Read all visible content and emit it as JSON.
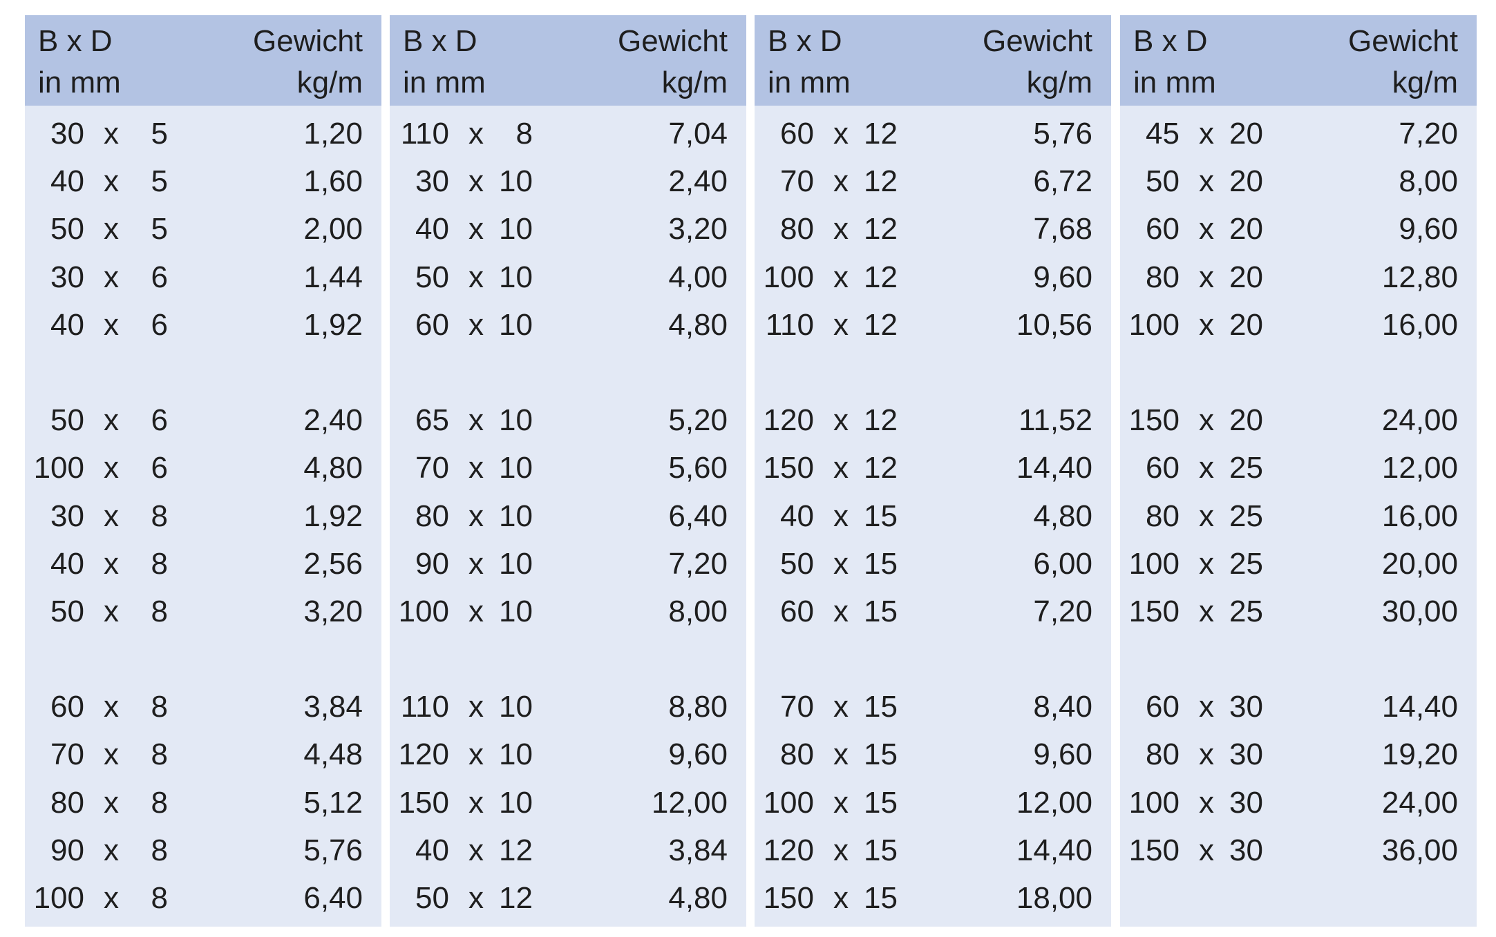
{
  "header": {
    "dim_line1": "B x D",
    "dim_line2": "in mm",
    "weight_line1": "Gewicht",
    "weight_line2": "kg/m"
  },
  "columns": [
    {
      "rows": [
        {
          "w": "30",
          "x": "x",
          "d": "5",
          "g": "1,20"
        },
        {
          "w": "40",
          "x": "x",
          "d": "5",
          "g": "1,60"
        },
        {
          "w": "50",
          "x": "x",
          "d": "5",
          "g": "2,00"
        },
        {
          "w": "30",
          "x": "x",
          "d": "6",
          "g": "1,44"
        },
        {
          "w": "40",
          "x": "x",
          "d": "6",
          "g": "1,92"
        },
        null,
        {
          "w": "50",
          "x": "x",
          "d": "6",
          "g": "2,40"
        },
        {
          "w": "100",
          "x": "x",
          "d": "6",
          "g": "4,80"
        },
        {
          "w": "30",
          "x": "x",
          "d": "8",
          "g": "1,92"
        },
        {
          "w": "40",
          "x": "x",
          "d": "8",
          "g": "2,56"
        },
        {
          "w": "50",
          "x": "x",
          "d": "8",
          "g": "3,20"
        },
        null,
        {
          "w": "60",
          "x": "x",
          "d": "8",
          "g": "3,84"
        },
        {
          "w": "70",
          "x": "x",
          "d": "8",
          "g": "4,48"
        },
        {
          "w": "80",
          "x": "x",
          "d": "8",
          "g": "5,12"
        },
        {
          "w": "90",
          "x": "x",
          "d": "8",
          "g": "5,76"
        },
        {
          "w": "100",
          "x": "x",
          "d": "8",
          "g": "6,40"
        }
      ]
    },
    {
      "rows": [
        {
          "w": "110",
          "x": "x",
          "d": "8",
          "g": "7,04"
        },
        {
          "w": "30",
          "x": "x",
          "d": "10",
          "g": "2,40"
        },
        {
          "w": "40",
          "x": "x",
          "d": "10",
          "g": "3,20"
        },
        {
          "w": "50",
          "x": "x",
          "d": "10",
          "g": "4,00"
        },
        {
          "w": "60",
          "x": "x",
          "d": "10",
          "g": "4,80"
        },
        null,
        {
          "w": "65",
          "x": "x",
          "d": "10",
          "g": "5,20"
        },
        {
          "w": "70",
          "x": "x",
          "d": "10",
          "g": "5,60"
        },
        {
          "w": "80",
          "x": "x",
          "d": "10",
          "g": "6,40"
        },
        {
          "w": "90",
          "x": "x",
          "d": "10",
          "g": "7,20"
        },
        {
          "w": "100",
          "x": "x",
          "d": "10",
          "g": "8,00"
        },
        null,
        {
          "w": "110",
          "x": "x",
          "d": "10",
          "g": "8,80"
        },
        {
          "w": "120",
          "x": "x",
          "d": "10",
          "g": "9,60"
        },
        {
          "w": "150",
          "x": "x",
          "d": "10",
          "g": "12,00"
        },
        {
          "w": "40",
          "x": "x",
          "d": "12",
          "g": "3,84"
        },
        {
          "w": "50",
          "x": "x",
          "d": "12",
          "g": "4,80"
        }
      ]
    },
    {
      "rows": [
        {
          "w": "60",
          "x": "x",
          "d": "12",
          "g": "5,76"
        },
        {
          "w": "70",
          "x": "x",
          "d": "12",
          "g": "6,72"
        },
        {
          "w": "80",
          "x": "x",
          "d": "12",
          "g": "7,68"
        },
        {
          "w": "100",
          "x": "x",
          "d": "12",
          "g": "9,60"
        },
        {
          "w": "110",
          "x": "x",
          "d": "12",
          "g": "10,56"
        },
        null,
        {
          "w": "120",
          "x": "x",
          "d": "12",
          "g": "11,52"
        },
        {
          "w": "150",
          "x": "x",
          "d": "12",
          "g": "14,40"
        },
        {
          "w": "40",
          "x": "x",
          "d": "15",
          "g": "4,80"
        },
        {
          "w": "50",
          "x": "x",
          "d": "15",
          "g": "6,00"
        },
        {
          "w": "60",
          "x": "x",
          "d": "15",
          "g": "7,20"
        },
        null,
        {
          "w": "70",
          "x": "x",
          "d": "15",
          "g": "8,40"
        },
        {
          "w": "80",
          "x": "x",
          "d": "15",
          "g": "9,60"
        },
        {
          "w": "100",
          "x": "x",
          "d": "15",
          "g": "12,00"
        },
        {
          "w": "120",
          "x": "x",
          "d": "15",
          "g": "14,40"
        },
        {
          "w": "150",
          "x": "x",
          "d": "15",
          "g": "18,00"
        }
      ]
    },
    {
      "rows": [
        {
          "w": "45",
          "x": "x",
          "d": "20",
          "g": "7,20"
        },
        {
          "w": "50",
          "x": "x",
          "d": "20",
          "g": "8,00"
        },
        {
          "w": "60",
          "x": "x",
          "d": "20",
          "g": "9,60"
        },
        {
          "w": "80",
          "x": "x",
          "d": "20",
          "g": "12,80"
        },
        {
          "w": "100",
          "x": "x",
          "d": "20",
          "g": "16,00"
        },
        null,
        {
          "w": "150",
          "x": "x",
          "d": "20",
          "g": "24,00"
        },
        {
          "w": "60",
          "x": "x",
          "d": "25",
          "g": "12,00"
        },
        {
          "w": "80",
          "x": "x",
          "d": "25",
          "g": "16,00"
        },
        {
          "w": "100",
          "x": "x",
          "d": "25",
          "g": "20,00"
        },
        {
          "w": "150",
          "x": "x",
          "d": "25",
          "g": "30,00"
        },
        null,
        {
          "w": "60",
          "x": "x",
          "d": "30",
          "g": "14,40"
        },
        {
          "w": "80",
          "x": "x",
          "d": "30",
          "g": "19,20"
        },
        {
          "w": "100",
          "x": "x",
          "d": "30",
          "g": "24,00"
        },
        {
          "w": "150",
          "x": "x",
          "d": "30",
          "g": "36,00"
        }
      ]
    }
  ],
  "colors": {
    "header_bg": "#b3c3e3",
    "body_bg": "#e3e9f5"
  }
}
